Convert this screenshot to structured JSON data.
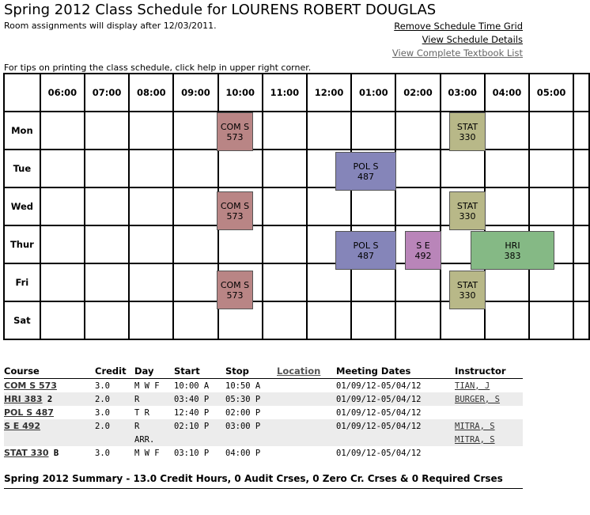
{
  "header": {
    "title": "Spring 2012 Class Schedule for LOURENS ROBERT DOUGLAS",
    "subtitle": "Room assignments will display after 12/03/2011.",
    "links": {
      "remove_grid": "Remove Schedule Time Grid",
      "view_details": "View Schedule Details",
      "view_textbooks": "View Complete Textbook List"
    },
    "tips": "For tips on printing the class schedule, click help in upper right corner."
  },
  "grid": {
    "times": [
      "06:00",
      "07:00",
      "08:00",
      "09:00",
      "10:00",
      "11:00",
      "12:00",
      "01:00",
      "02:00",
      "03:00",
      "04:00",
      "05:00"
    ],
    "days": [
      "Mon",
      "Tue",
      "Wed",
      "Thur",
      "Fri",
      "Sat"
    ],
    "blocks": [
      {
        "day": "Mon",
        "course": "COM S",
        "number": "573",
        "color": "#b98585"
      },
      {
        "day": "Mon",
        "course": "STAT",
        "number": "330",
        "color": "#b8b888"
      },
      {
        "day": "Tue",
        "course": "POL S",
        "number": "487",
        "color": "#8585b9"
      },
      {
        "day": "Wed",
        "course": "COM S",
        "number": "573",
        "color": "#b98585"
      },
      {
        "day": "Wed",
        "course": "STAT",
        "number": "330",
        "color": "#b8b888"
      },
      {
        "day": "Thur",
        "course": "POL S",
        "number": "487",
        "color": "#8585b9"
      },
      {
        "day": "Thur",
        "course": "S E",
        "number": "492",
        "color": "#b985b9"
      },
      {
        "day": "Thur",
        "course": "HRI",
        "number": "383",
        "color": "#85b985"
      },
      {
        "day": "Fri",
        "course": "COM S",
        "number": "573",
        "color": "#b98585"
      },
      {
        "day": "Fri",
        "course": "STAT",
        "number": "330",
        "color": "#b8b888"
      }
    ]
  },
  "course_list": {
    "headers": {
      "course": "Course",
      "credit": "Credit",
      "day": "Day",
      "start": "Start",
      "stop": "Stop",
      "location": "Location",
      "meeting": "Meeting Dates",
      "instructor": "Instructor"
    },
    "rows": [
      {
        "course": "COM S 573",
        "flag": "",
        "credit": "3.0",
        "day": "M W F",
        "start": "10:00 A",
        "stop": "10:50 A",
        "meeting": "01/09/12-05/04/12",
        "instructor": "TIAN, J"
      },
      {
        "course": "HRI 383",
        "flag": "2",
        "credit": "2.0",
        "day": "R",
        "start": "03:40 P",
        "stop": "05:30 P",
        "meeting": "01/09/12-05/04/12",
        "instructor": "BURGER, S"
      },
      {
        "course": "POL S 487",
        "flag": "",
        "credit": "3.0",
        "day": "T R",
        "start": "12:40 P",
        "stop": "02:00 P",
        "meeting": "01/09/12-05/04/12",
        "instructor": ""
      },
      {
        "course": "S E 492",
        "flag": "",
        "credit": "2.0",
        "day": "R",
        "start": "02:10 P",
        "stop": "03:00 P",
        "meeting": "01/09/12-05/04/12",
        "instructor": "MITRA, S"
      },
      {
        "course": "",
        "flag": "",
        "credit": "",
        "day": "ARR.",
        "start": "",
        "stop": "",
        "meeting": "",
        "instructor": "MITRA, S"
      },
      {
        "course": "STAT 330",
        "flag": "B",
        "credit": "3.0",
        "day": "M W F",
        "start": "03:10 P",
        "stop": "04:00 P",
        "meeting": "01/09/12-05/04/12",
        "instructor": ""
      }
    ]
  },
  "summary": "Spring 2012 Summary - 13.0 Credit Hours, 0 Audit Crses, 0 Zero Cr. Crses & 0 Required Crses"
}
